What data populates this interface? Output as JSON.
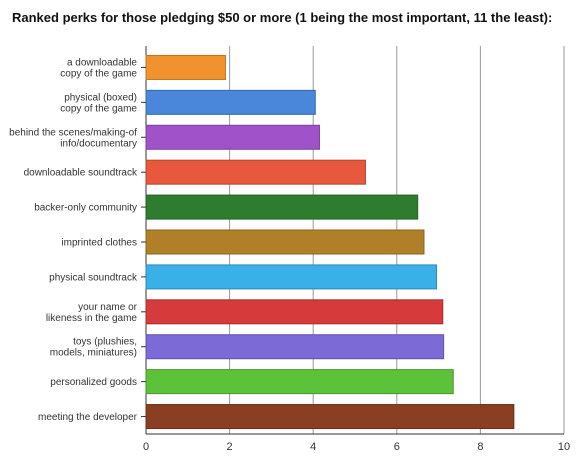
{
  "chart_data": {
    "type": "bar",
    "orientation": "horizontal",
    "title": "Ranked perks for those pledging $50 or more (1 being the most important, 11 the least):",
    "xlabel": "",
    "ylabel": "",
    "xlim": [
      0,
      10
    ],
    "xticks": [
      "0",
      "2",
      "4",
      "6",
      "8",
      "10"
    ],
    "grid": "vertical",
    "legend": "none",
    "categories": [
      [
        "a downloadable",
        "copy of the game"
      ],
      [
        "physical (boxed)",
        "copy of the game"
      ],
      [
        "behind the scenes/making-of",
        "info/documentary"
      ],
      [
        "downloadable soundtrack"
      ],
      [
        "backer-only community"
      ],
      [
        "imprinted clothes"
      ],
      [
        "physical soundtrack"
      ],
      [
        "your name or",
        "likeness in the game"
      ],
      [
        "toys (plushies,",
        "models, miniatures)"
      ],
      [
        "personalized goods"
      ],
      [
        "meeting the developer"
      ]
    ],
    "values": [
      1.9,
      4.05,
      4.15,
      5.25,
      6.5,
      6.65,
      6.95,
      7.1,
      7.12,
      7.35,
      8.8
    ],
    "colors": [
      "#f0922e",
      "#4a86d9",
      "#a052c8",
      "#e8583c",
      "#2e7d2e",
      "#b08028",
      "#3ab0e8",
      "#d63a3a",
      "#7c6ad6",
      "#5cc23a",
      "#8a3e22"
    ]
  }
}
